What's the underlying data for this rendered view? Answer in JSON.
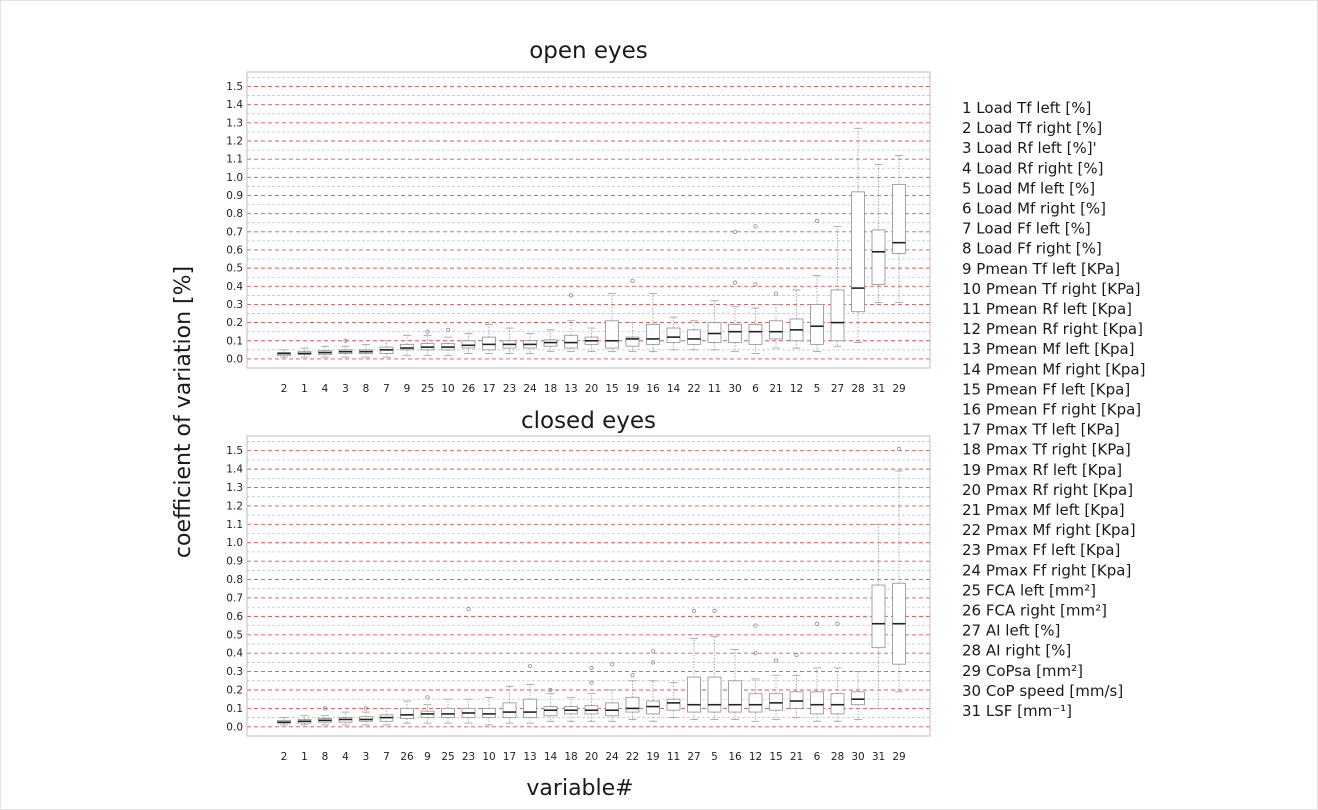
{
  "figure": {
    "ylabel": "coefficient of variation  [%]",
    "xlabel": "variable#"
  },
  "legend": [
    "1   Load Tf left [%]",
    "2   Load Tf right [%]",
    "3   Load Rf left [%]'",
    "4   Load Rf right [%]",
    "5   Load Mf left [%]",
    "6   Load Mf right [%]",
    "7   Load Ff left [%]",
    "8   Load Ff right [%]",
    "9   Pmean Tf left [KPa]",
    "10 Pmean Tf right [KPa]",
    "11 Pmean Rf left [Kpa]",
    "12 Pmean Rf right [Kpa]",
    "13 Pmean Mf left [Kpa]",
    "14 Pmean Mf right [Kpa]",
    "15 Pmean Ff left [Kpa]",
    "16 Pmean Ff right [Kpa]",
    "17 Pmax Tf left [KPa]",
    "18 Pmax Tf right [KPa]",
    "19 Pmax Rf left [Kpa]",
    "20 Pmax Rf right [Kpa]",
    "21 Pmax Mf left [Kpa]",
    "22 Pmax Mf right [Kpa]",
    "23 Pmax Ff left [Kpa]",
    "24 Pmax Ff right [Kpa]",
    "25 FCA left  [mm²]",
    "26 FCA right  [mm²]",
    "27 AI left [%]",
    "28 AI right [%]",
    "29 CoPsa [mm²]",
    "30 CoP speed [mm/s]",
    "31 LSF [mm⁻¹]"
  ],
  "colors": {
    "major_grid": "#d9534f",
    "minor_grid": "#a9c4de",
    "box": "#9a9a9a",
    "median": "#222222",
    "outlier": "#8a8a8a"
  },
  "chart_data": [
    {
      "type": "box",
      "title": "open eyes",
      "ylim": [
        -0.05,
        1.58
      ],
      "yticks": [
        "0.0",
        "0.1",
        "0.2",
        "0.3",
        "0.4",
        "0.5",
        "0.6",
        "0.7",
        "0.8",
        "0.9",
        "1.0",
        "1.1",
        "1.2",
        "1.3",
        "1.4",
        "1.5"
      ],
      "grid": true,
      "categories": [
        "2",
        "1",
        "4",
        "3",
        "8",
        "7",
        "9",
        "25",
        "10",
        "26",
        "17",
        "23",
        "24",
        "18",
        "13",
        "20",
        "15",
        "19",
        "16",
        "14",
        "22",
        "11",
        "30",
        "6",
        "21",
        "12",
        "5",
        "27",
        "28",
        "31",
        "29"
      ],
      "boxes": [
        {
          "min": 0.01,
          "q1": 0.02,
          "median": 0.03,
          "q3": 0.035,
          "max": 0.05,
          "outliers": []
        },
        {
          "min": 0.01,
          "q1": 0.025,
          "median": 0.03,
          "q3": 0.04,
          "max": 0.06,
          "outliers": []
        },
        {
          "min": 0.01,
          "q1": 0.025,
          "median": 0.035,
          "q3": 0.045,
          "max": 0.07,
          "outliers": []
        },
        {
          "min": 0.01,
          "q1": 0.03,
          "median": 0.04,
          "q3": 0.05,
          "max": 0.07,
          "outliers": [
            0.1
          ]
        },
        {
          "min": 0.01,
          "q1": 0.03,
          "median": 0.04,
          "q3": 0.05,
          "max": 0.08,
          "outliers": []
        },
        {
          "min": 0.01,
          "q1": 0.03,
          "median": 0.05,
          "q3": 0.065,
          "max": 0.1,
          "outliers": []
        },
        {
          "min": 0.02,
          "q1": 0.05,
          "median": 0.06,
          "q3": 0.08,
          "max": 0.13,
          "outliers": []
        },
        {
          "min": 0.02,
          "q1": 0.05,
          "median": 0.065,
          "q3": 0.085,
          "max": 0.13,
          "outliers": [
            0.15
          ]
        },
        {
          "min": 0.02,
          "q1": 0.05,
          "median": 0.065,
          "q3": 0.085,
          "max": 0.12,
          "outliers": [
            0.16
          ]
        },
        {
          "min": 0.03,
          "q1": 0.06,
          "median": 0.075,
          "q3": 0.1,
          "max": 0.14,
          "outliers": []
        },
        {
          "min": 0.03,
          "q1": 0.05,
          "median": 0.08,
          "q3": 0.12,
          "max": 0.19,
          "outliers": []
        },
        {
          "min": 0.03,
          "q1": 0.06,
          "median": 0.08,
          "q3": 0.1,
          "max": 0.17,
          "outliers": []
        },
        {
          "min": 0.03,
          "q1": 0.06,
          "median": 0.08,
          "q3": 0.1,
          "max": 0.14,
          "outliers": []
        },
        {
          "min": 0.04,
          "q1": 0.07,
          "median": 0.09,
          "q3": 0.105,
          "max": 0.16,
          "outliers": []
        },
        {
          "min": 0.04,
          "q1": 0.06,
          "median": 0.09,
          "q3": 0.13,
          "max": 0.21,
          "outliers": [
            0.35
          ]
        },
        {
          "min": 0.04,
          "q1": 0.08,
          "median": 0.1,
          "q3": 0.12,
          "max": 0.17,
          "outliers": []
        },
        {
          "min": 0.04,
          "q1": 0.06,
          "median": 0.1,
          "q3": 0.21,
          "max": 0.36,
          "outliers": []
        },
        {
          "min": 0.04,
          "q1": 0.07,
          "median": 0.11,
          "q3": 0.12,
          "max": 0.2,
          "outliers": [
            0.43
          ]
        },
        {
          "min": 0.04,
          "q1": 0.08,
          "median": 0.11,
          "q3": 0.19,
          "max": 0.36,
          "outliers": []
        },
        {
          "min": 0.05,
          "q1": 0.09,
          "median": 0.12,
          "q3": 0.17,
          "max": 0.23,
          "outliers": []
        },
        {
          "min": 0.05,
          "q1": 0.08,
          "median": 0.11,
          "q3": 0.16,
          "max": 0.21,
          "outliers": []
        },
        {
          "min": 0.05,
          "q1": 0.09,
          "median": 0.14,
          "q3": 0.2,
          "max": 0.32,
          "outliers": []
        },
        {
          "min": 0.04,
          "q1": 0.09,
          "median": 0.15,
          "q3": 0.19,
          "max": 0.29,
          "outliers": [
            0.42,
            0.7
          ]
        },
        {
          "min": 0.03,
          "q1": 0.08,
          "median": 0.15,
          "q3": 0.19,
          "max": 0.28,
          "outliers": [
            0.41,
            0.73
          ]
        },
        {
          "min": 0.06,
          "q1": 0.11,
          "median": 0.15,
          "q3": 0.21,
          "max": 0.3,
          "outliers": [
            0.36
          ]
        },
        {
          "min": 0.06,
          "q1": 0.1,
          "median": 0.16,
          "q3": 0.22,
          "max": 0.38,
          "outliers": []
        },
        {
          "min": 0.04,
          "q1": 0.08,
          "median": 0.18,
          "q3": 0.3,
          "max": 0.46,
          "outliers": [
            0.76
          ]
        },
        {
          "min": 0.07,
          "q1": 0.1,
          "median": 0.2,
          "q3": 0.38,
          "max": 0.73,
          "outliers": []
        },
        {
          "min": 0.09,
          "q1": 0.26,
          "median": 0.39,
          "q3": 0.92,
          "max": 1.27,
          "outliers": []
        },
        {
          "min": 0.31,
          "q1": 0.41,
          "median": 0.59,
          "q3": 0.71,
          "max": 1.07,
          "outliers": []
        },
        {
          "min": 0.31,
          "q1": 0.58,
          "median": 0.64,
          "q3": 0.96,
          "max": 1.12,
          "outliers": []
        }
      ]
    },
    {
      "type": "box",
      "title": "closed eyes",
      "ylim": [
        -0.05,
        1.58
      ],
      "yticks": [
        "0.0",
        "0.1",
        "0.2",
        "0.3",
        "0.4",
        "0.5",
        "0.6",
        "0.7",
        "0.8",
        "0.9",
        "1.0",
        "1.1",
        "1.2",
        "1.3",
        "1.4",
        "1.5"
      ],
      "grid": true,
      "categories": [
        "2",
        "1",
        "8",
        "4",
        "3",
        "7",
        "26",
        "9",
        "25",
        "23",
        "10",
        "17",
        "13",
        "14",
        "18",
        "20",
        "24",
        "22",
        "19",
        "11",
        "27",
        "5",
        "16",
        "12",
        "15",
        "21",
        "6",
        "28",
        "30",
        "31",
        "29"
      ],
      "boxes": [
        {
          "min": 0.01,
          "q1": 0.02,
          "median": 0.025,
          "q3": 0.035,
          "max": 0.05,
          "outliers": []
        },
        {
          "min": 0.01,
          "q1": 0.02,
          "median": 0.03,
          "q3": 0.04,
          "max": 0.06,
          "outliers": []
        },
        {
          "min": 0.01,
          "q1": 0.025,
          "median": 0.035,
          "q3": 0.045,
          "max": 0.06,
          "outliers": [
            0.1
          ]
        },
        {
          "min": 0.01,
          "q1": 0.025,
          "median": 0.04,
          "q3": 0.05,
          "max": 0.08,
          "outliers": []
        },
        {
          "min": 0.01,
          "q1": 0.03,
          "median": 0.04,
          "q3": 0.055,
          "max": 0.08,
          "outliers": [
            0.1
          ]
        },
        {
          "min": 0.01,
          "q1": 0.03,
          "median": 0.05,
          "q3": 0.065,
          "max": 0.1,
          "outliers": []
        },
        {
          "min": 0.02,
          "q1": 0.045,
          "median": 0.065,
          "q3": 0.1,
          "max": 0.14,
          "outliers": []
        },
        {
          "min": 0.02,
          "q1": 0.05,
          "median": 0.07,
          "q3": 0.085,
          "max": 0.12,
          "outliers": [
            0.16
          ]
        },
        {
          "min": 0.02,
          "q1": 0.05,
          "median": 0.07,
          "q3": 0.1,
          "max": 0.15,
          "outliers": []
        },
        {
          "min": 0.02,
          "q1": 0.05,
          "median": 0.075,
          "q3": 0.1,
          "max": 0.15,
          "outliers": [
            0.64
          ]
        },
        {
          "min": 0.01,
          "q1": 0.05,
          "median": 0.07,
          "q3": 0.1,
          "max": 0.16,
          "outliers": []
        },
        {
          "min": 0.02,
          "q1": 0.05,
          "median": 0.08,
          "q3": 0.13,
          "max": 0.22,
          "outliers": []
        },
        {
          "min": 0.02,
          "q1": 0.05,
          "median": 0.08,
          "q3": 0.15,
          "max": 0.23,
          "outliers": [
            0.33
          ]
        },
        {
          "min": 0.03,
          "q1": 0.06,
          "median": 0.09,
          "q3": 0.11,
          "max": 0.18,
          "outliers": [
            0.2
          ]
        },
        {
          "min": 0.03,
          "q1": 0.07,
          "median": 0.09,
          "q3": 0.11,
          "max": 0.16,
          "outliers": []
        },
        {
          "min": 0.03,
          "q1": 0.07,
          "median": 0.09,
          "q3": 0.115,
          "max": 0.18,
          "outliers": [
            0.24,
            0.32
          ]
        },
        {
          "min": 0.03,
          "q1": 0.06,
          "median": 0.09,
          "q3": 0.13,
          "max": 0.2,
          "outliers": [
            0.34
          ]
        },
        {
          "min": 0.04,
          "q1": 0.08,
          "median": 0.1,
          "q3": 0.16,
          "max": 0.25,
          "outliers": [
            0.28
          ]
        },
        {
          "min": 0.03,
          "q1": 0.07,
          "median": 0.11,
          "q3": 0.14,
          "max": 0.25,
          "outliers": [
            0.35,
            0.41
          ]
        },
        {
          "min": 0.05,
          "q1": 0.09,
          "median": 0.13,
          "q3": 0.15,
          "max": 0.24,
          "outliers": []
        },
        {
          "min": 0.04,
          "q1": 0.08,
          "median": 0.12,
          "q3": 0.27,
          "max": 0.48,
          "outliers": [
            0.63
          ]
        },
        {
          "min": 0.04,
          "q1": 0.08,
          "median": 0.12,
          "q3": 0.27,
          "max": 0.49,
          "outliers": [
            0.63
          ]
        },
        {
          "min": 0.04,
          "q1": 0.08,
          "median": 0.12,
          "q3": 0.25,
          "max": 0.42,
          "outliers": []
        },
        {
          "min": 0.03,
          "q1": 0.08,
          "median": 0.12,
          "q3": 0.18,
          "max": 0.26,
          "outliers": [
            0.4,
            0.55
          ]
        },
        {
          "min": 0.04,
          "q1": 0.09,
          "median": 0.13,
          "q3": 0.18,
          "max": 0.28,
          "outliers": [
            0.36
          ]
        },
        {
          "min": 0.05,
          "q1": 0.1,
          "median": 0.14,
          "q3": 0.19,
          "max": 0.28,
          "outliers": [
            0.39
          ]
        },
        {
          "min": 0.03,
          "q1": 0.07,
          "median": 0.12,
          "q3": 0.19,
          "max": 0.32,
          "outliers": [
            0.56
          ]
        },
        {
          "min": 0.03,
          "q1": 0.07,
          "median": 0.12,
          "q3": 0.18,
          "max": 0.32,
          "outliers": [
            0.56
          ]
        },
        {
          "min": 0.04,
          "q1": 0.12,
          "median": 0.15,
          "q3": 0.19,
          "max": 0.3,
          "outliers": []
        },
        {
          "min": 0.1,
          "q1": 0.43,
          "median": 0.56,
          "q3": 0.77,
          "max": 1.1,
          "outliers": []
        },
        {
          "min": 0.19,
          "q1": 0.34,
          "median": 0.56,
          "q3": 0.78,
          "max": 1.39,
          "outliers": [
            1.51
          ]
        }
      ]
    }
  ]
}
